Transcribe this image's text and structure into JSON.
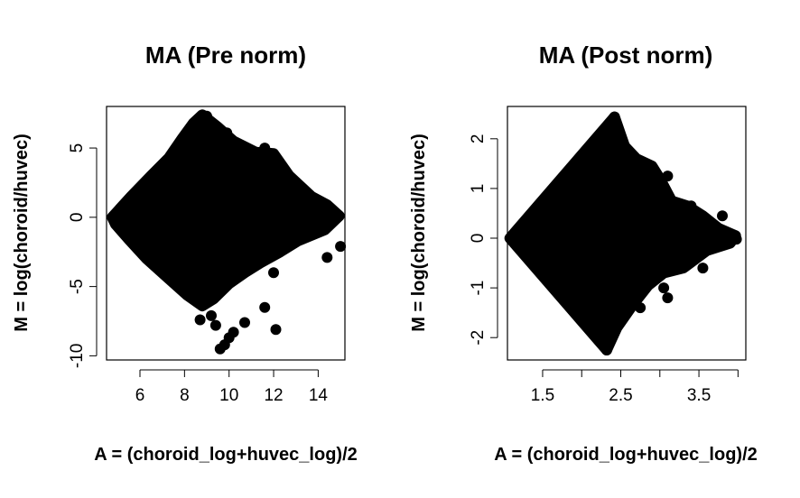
{
  "chart_data": [
    {
      "type": "scatter",
      "title": "MA (Pre norm)",
      "xlabel": "A = (choroid_log+huvec_log)/2",
      "ylabel": "M = log(choroid/huvec)",
      "xlim": [
        4.5,
        15.2
      ],
      "ylim": [
        -10.3,
        8.0
      ],
      "xticks": [
        6,
        8,
        10,
        12,
        14
      ],
      "yticks": [
        -10,
        -5,
        0,
        5
      ],
      "color": "#000000",
      "grid": false,
      "envelope": [
        [
          4.75,
          0.0
        ],
        [
          5.6,
          1.5
        ],
        [
          6.5,
          3.0
        ],
        [
          7.3,
          4.3
        ],
        [
          7.9,
          5.7
        ],
        [
          8.4,
          6.8
        ],
        [
          8.8,
          7.4
        ],
        [
          9.5,
          6.5
        ],
        [
          10.2,
          5.5
        ],
        [
          11.2,
          4.7
        ],
        [
          12.0,
          4.6
        ],
        [
          12.7,
          3.0
        ],
        [
          13.7,
          1.5
        ],
        [
          14.4,
          0.9
        ],
        [
          14.95,
          0.1
        ],
        [
          14.3,
          -0.9
        ],
        [
          13.1,
          -1.7
        ],
        [
          12.3,
          -2.5
        ],
        [
          11.4,
          -3.3
        ],
        [
          10.7,
          -4.0
        ],
        [
          10.0,
          -4.8
        ],
        [
          9.3,
          -5.9
        ],
        [
          8.8,
          -6.4
        ],
        [
          8.1,
          -5.6
        ],
        [
          7.2,
          -4.3
        ],
        [
          6.3,
          -3.0
        ],
        [
          5.5,
          -1.6
        ],
        [
          4.9,
          -0.5
        ]
      ],
      "outliers": [
        [
          15.0,
          -2.1
        ],
        [
          14.4,
          -2.9
        ],
        [
          12.0,
          -4.0
        ],
        [
          11.6,
          -6.5
        ],
        [
          12.1,
          -8.1
        ],
        [
          10.7,
          -7.6
        ],
        [
          10.2,
          -8.3
        ],
        [
          10.0,
          -8.7
        ],
        [
          9.8,
          -9.2
        ],
        [
          9.6,
          -9.5
        ],
        [
          9.4,
          -7.8
        ],
        [
          9.2,
          -7.1
        ],
        [
          8.7,
          -7.4
        ],
        [
          9.0,
          7.3
        ],
        [
          8.7,
          7.1
        ],
        [
          9.9,
          6.1
        ],
        [
          11.6,
          5.0
        ]
      ]
    },
    {
      "type": "scatter",
      "title": "MA (Post norm)",
      "xlabel": "A = (choroid_log+huvec_log)/2",
      "ylabel": "M = log(choroid/huvec)",
      "xlim": [
        1.05,
        4.1
      ],
      "ylim": [
        -2.45,
        2.65
      ],
      "xticks": [
        1.5,
        2.5,
        3.5
      ],
      "yticks": [
        -2,
        -1,
        0,
        1,
        2
      ],
      "color": "#000000",
      "grid": false,
      "envelope": [
        [
          1.08,
          0.0
        ],
        [
          2.42,
          2.44
        ],
        [
          2.55,
          1.85
        ],
        [
          2.7,
          1.6
        ],
        [
          2.9,
          1.45
        ],
        [
          3.0,
          1.2
        ],
        [
          3.15,
          0.75
        ],
        [
          3.35,
          0.65
        ],
        [
          3.55,
          0.45
        ],
        [
          3.75,
          0.2
        ],
        [
          3.97,
          0.05
        ],
        [
          3.9,
          -0.1
        ],
        [
          3.6,
          -0.25
        ],
        [
          3.3,
          -0.6
        ],
        [
          3.05,
          -0.7
        ],
        [
          2.85,
          -0.95
        ],
        [
          2.65,
          -1.35
        ],
        [
          2.45,
          -1.8
        ],
        [
          2.32,
          -2.25
        ]
      ],
      "outliers": [
        [
          2.42,
          2.44
        ],
        [
          2.32,
          -2.25
        ],
        [
          3.1,
          1.25
        ],
        [
          3.4,
          0.65
        ],
        [
          3.8,
          0.45
        ],
        [
          3.05,
          -1.0
        ],
        [
          3.1,
          -1.2
        ],
        [
          2.75,
          -1.4
        ],
        [
          3.98,
          -0.02
        ],
        [
          3.55,
          -0.6
        ]
      ]
    }
  ]
}
